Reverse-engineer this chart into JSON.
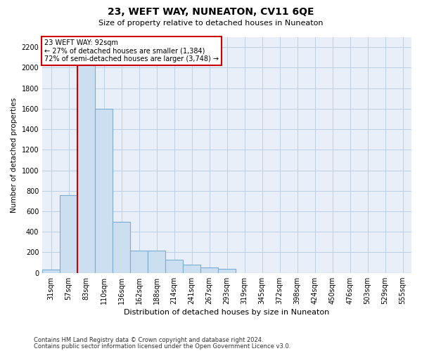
{
  "title": "23, WEFT WAY, NUNEATON, CV11 6QE",
  "subtitle": "Size of property relative to detached houses in Nuneaton",
  "xlabel": "Distribution of detached houses by size in Nuneaton",
  "ylabel": "Number of detached properties",
  "footer_line1": "Contains HM Land Registry data © Crown copyright and database right 2024.",
  "footer_line2": "Contains public sector information licensed under the Open Government Licence v3.0.",
  "property_label": "23 WEFT WAY: 92sqm",
  "annotation_line1": "← 27% of detached houses are smaller (1,384)",
  "annotation_line2": "72% of semi-detached houses are larger (3,748) →",
  "bin_labels": [
    "31sqm",
    "57sqm",
    "83sqm",
    "110sqm",
    "136sqm",
    "162sqm",
    "188sqm",
    "214sqm",
    "241sqm",
    "267sqm",
    "293sqm",
    "319sqm",
    "345sqm",
    "372sqm",
    "398sqm",
    "424sqm",
    "450sqm",
    "476sqm",
    "503sqm",
    "529sqm",
    "555sqm"
  ],
  "bar_values": [
    30,
    760,
    2050,
    1600,
    500,
    220,
    220,
    130,
    80,
    55,
    40,
    0,
    0,
    0,
    0,
    0,
    0,
    0,
    0,
    0,
    0
  ],
  "red_line_bin_index": 2,
  "bar_color": "#ccdff0",
  "bar_edge_color": "#7aadd4",
  "red_line_color": "#cc0000",
  "annotation_box_edge_color": "#cc0000",
  "grid_color": "#bdd0e8",
  "background_color": "#e8eff8",
  "ylim": [
    0,
    2300
  ],
  "yticks": [
    0,
    200,
    400,
    600,
    800,
    1000,
    1200,
    1400,
    1600,
    1800,
    2000,
    2200
  ],
  "title_fontsize": 10,
  "subtitle_fontsize": 8,
  "ylabel_fontsize": 7.5,
  "xlabel_fontsize": 8,
  "tick_fontsize": 7,
  "annotation_fontsize": 7,
  "footer_fontsize": 6
}
